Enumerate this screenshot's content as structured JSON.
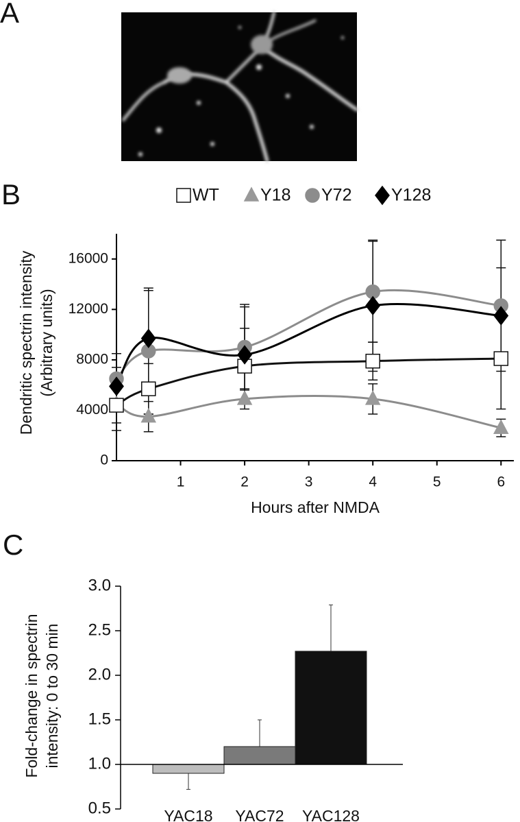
{
  "panel_labels": [
    "A",
    "B",
    "C"
  ],
  "chart_data": [
    {
      "type": "line",
      "xlabel": "Hours after NMDA",
      "ylabel": [
        "Dendritic spectrin intensity",
        "(Arbitrary units)"
      ],
      "x": [
        0,
        0.5,
        2,
        4,
        6
      ],
      "xlim": [
        0,
        6.2
      ],
      "xticks": [
        1,
        2,
        3,
        4,
        5,
        6
      ],
      "ylim": [
        0,
        18000
      ],
      "yticks": [
        0,
        4000,
        8000,
        12000,
        16000
      ],
      "series": [
        {
          "name": "Y18",
          "marker": "triangle",
          "color": "#999999",
          "line_color": "#8c8c8c",
          "values": [
            4500,
            3500,
            4900,
            4900,
            2600
          ],
          "errors": [
            1500,
            1200,
            800,
            1200,
            700
          ]
        },
        {
          "name": "Y72",
          "marker": "circle",
          "color": "#8c8c8c",
          "line_color": "#8c8c8c",
          "values": [
            6500,
            8700,
            9000,
            13400,
            12300
          ],
          "errors": [
            2000,
            5000,
            3400,
            4000,
            5200
          ]
        },
        {
          "name": "WT",
          "marker": "square",
          "color": "#ffffff",
          "line_color": "#111111",
          "values": [
            4400,
            5700,
            7500,
            7900,
            8100
          ],
          "errors": [
            2000,
            2000,
            3000,
            1500,
            4000
          ]
        },
        {
          "name": "Y128",
          "marker": "diamond",
          "color": "#000000",
          "line_color": "#000000",
          "values": [
            5900,
            9700,
            8400,
            12300,
            11500
          ],
          "errors": [
            1500,
            3800,
            3800,
            5200,
            3800
          ]
        }
      ],
      "legend_order": [
        "WT",
        "Y18",
        "Y72",
        "Y128"
      ],
      "legend": "top"
    },
    {
      "type": "bar",
      "ylabel": [
        "Fold-change in spectrin",
        "intensity:  0 to 30 min"
      ],
      "categories": [
        "YAC18",
        "YAC72",
        "YAC128"
      ],
      "values": [
        0.9,
        1.2,
        2.27
      ],
      "errors": [
        0.18,
        0.3,
        0.52
      ],
      "colors": [
        "#bdbdbd",
        "#7a7a7a",
        "#111111"
      ],
      "baseline": 1,
      "ylim": [
        0.5,
        3
      ],
      "yticks": [
        0.5,
        {
          "value": 1,
          "label": "1.0"
        },
        1.5,
        {
          "value": 2,
          "label": "2.0"
        },
        2.5,
        {
          "value": 3,
          "label": "3.0"
        }
      ]
    }
  ]
}
